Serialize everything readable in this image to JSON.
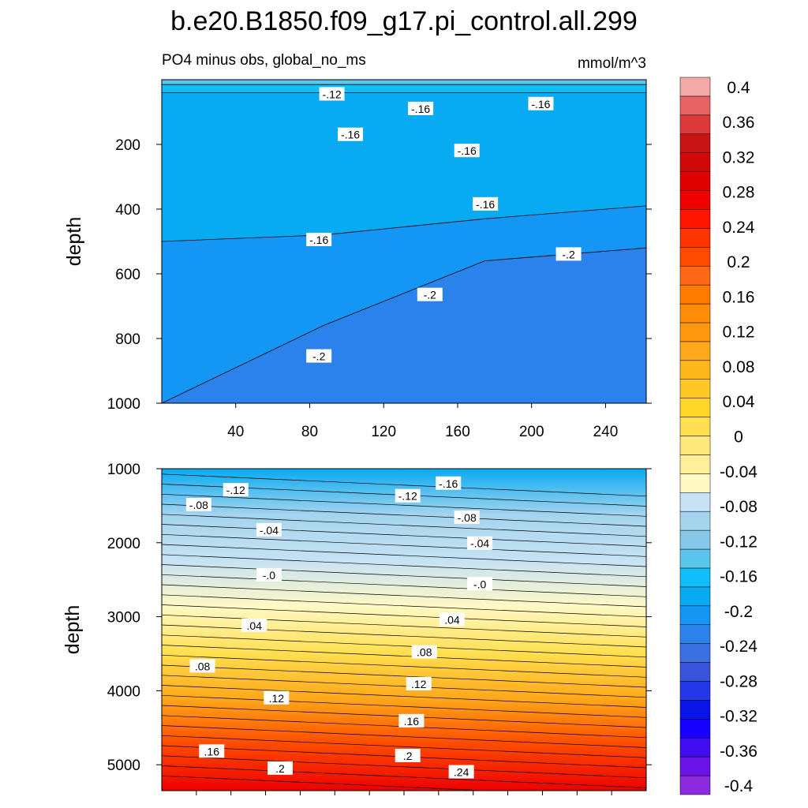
{
  "chart_data": {
    "type": "contour",
    "title": "b.e20.B1850.f09_g17.pi_control.all.299",
    "subtitle_left": "PO4 minus obs, global_no_ms",
    "subtitle_right": "mmol/m^3",
    "colorbar": {
      "levels": [
        -0.4,
        -0.36,
        -0.32,
        -0.28,
        -0.24,
        -0.2,
        -0.16,
        -0.12,
        -0.08,
        -0.04,
        0,
        0.04,
        0.08,
        0.12,
        0.16,
        0.2,
        0.24,
        0.28,
        0.32,
        0.36,
        0.4
      ],
      "labels": [
        "-0.4",
        "-0.36",
        "-0.32",
        "-0.28",
        "-0.24",
        "-0.2",
        "-0.16",
        "-0.12",
        "-0.08",
        "-0.04",
        "0",
        "0.04",
        "0.08",
        "0.12",
        "0.16",
        "0.2",
        "0.24",
        "0.28",
        "0.32",
        "0.36",
        "0.4"
      ],
      "colors": [
        "#8c2ae0",
        "#6a14e8",
        "#3f0df0",
        "#1600ff",
        "#0b14e6",
        "#2438e8",
        "#3a55dc",
        "#3a70e2",
        "#2a82ea",
        "#1496f4",
        "#08aaf2",
        "#10bff8",
        "#5ac6ee",
        "#86c8ea",
        "#a4d4ee",
        "#c6e2f4",
        "#fff9c4",
        "#ffef9a",
        "#ffe87a",
        "#ffe050",
        "#ffd62a",
        "#ffc824",
        "#ffb81c",
        "#ffa81a",
        "#ff9810",
        "#ff8c08",
        "#ff7a00",
        "#ff6814",
        "#ff4a00",
        "#ff3400",
        "#ff1400",
        "#f00000",
        "#e00000",
        "#d00808",
        "#c81414",
        "#dc3a3a",
        "#e86464",
        "#f4a8a8"
      ]
    },
    "panels": [
      {
        "name": "upper",
        "xlim": [
          0,
          262
        ],
        "ylim": [
          1000,
          0
        ],
        "x_ticks": [
          40,
          80,
          120,
          160,
          200,
          240
        ],
        "x_tick_labels": [
          "40",
          "80",
          "120",
          "160",
          "200",
          "240"
        ],
        "y_ticks": [
          200,
          400,
          600,
          800,
          1000
        ],
        "y_tick_labels": [
          "200",
          "400",
          "600",
          "800",
          "1000"
        ],
        "ylabel": "depth",
        "bands": [
          {
            "value_range": [
              -0.12,
              -0.08
            ],
            "color": "#5ac6ee",
            "from_depth": [
              0,
              0,
              0,
              0
            ],
            "to_depth": [
              15,
              15,
              15,
              15
            ]
          },
          {
            "value_range": [
              -0.16,
              -0.12
            ],
            "color": "#10bff8",
            "from_depth": [
              15,
              15,
              15,
              15
            ],
            "to_depth": [
              40,
              40,
              40,
              40
            ]
          },
          {
            "value_range": [
              -0.16,
              -0.12
            ],
            "color": "#08aaf2",
            "from_depth": [
              40,
              40,
              40,
              40
            ],
            "to_depth": [
              500,
              480,
              430,
              390
            ]
          },
          {
            "value_range": [
              -0.2,
              -0.16
            ],
            "color": "#1496f4",
            "from_depth": [
              500,
              480,
              430,
              390
            ],
            "to_depth": [
              1000,
              760,
              560,
              520
            ]
          },
          {
            "value_range": [
              -0.24,
              -0.2
            ],
            "color": "#2a82ea",
            "from_depth": [
              1000,
              760,
              560,
              520
            ],
            "to_depth": [
              1000,
              1000,
              1000,
              1000
            ]
          }
        ],
        "contour_labels": [
          {
            "text": "-.12",
            "x": 92,
            "y": 45
          },
          {
            "text": "-.16",
            "x": 140,
            "y": 90
          },
          {
            "text": "-.16",
            "x": 205,
            "y": 75
          },
          {
            "text": "-.16",
            "x": 102,
            "y": 170
          },
          {
            "text": "-.16",
            "x": 165,
            "y": 220
          },
          {
            "text": "-.16",
            "x": 175,
            "y": 385
          },
          {
            "text": "-.16",
            "x": 85,
            "y": 495
          },
          {
            "text": "-.2",
            "x": 220,
            "y": 540
          },
          {
            "text": "-.2",
            "x": 145,
            "y": 665
          },
          {
            "text": "-.2",
            "x": 85,
            "y": 855
          }
        ]
      },
      {
        "name": "lower",
        "xlim": [
          0,
          262
        ],
        "ylim": [
          5350,
          1000
        ],
        "y_ticks": [
          1000,
          2000,
          3000,
          4000,
          5000
        ],
        "y_tick_labels": [
          "1000",
          "2000",
          "3000",
          "4000",
          "5000"
        ],
        "ylabel": "depth",
        "gradient_colors": [
          "#08aaf2",
          "#a4d4ee",
          "#c6e2f4",
          "#fff9c4",
          "#ffe050",
          "#ffa81a",
          "#ff4a00",
          "#ee0000"
        ],
        "contour_labels": [
          {
            "text": "-.12",
            "x": 40,
            "y": 1290
          },
          {
            "text": "-.08",
            "x": 20,
            "y": 1490
          },
          {
            "text": "-.04",
            "x": 58,
            "y": 1830
          },
          {
            "text": "-.0",
            "x": 58,
            "y": 2440
          },
          {
            "text": ".04",
            "x": 50,
            "y": 3120
          },
          {
            "text": ".08",
            "x": 22,
            "y": 3670
          },
          {
            "text": ".12",
            "x": 62,
            "y": 4100
          },
          {
            "text": ".16",
            "x": 27,
            "y": 4820
          },
          {
            "text": ".2",
            "x": 64,
            "y": 5050
          },
          {
            "text": "-.16",
            "x": 155,
            "y": 1200
          },
          {
            "text": "-.12",
            "x": 133,
            "y": 1370
          },
          {
            "text": "-.08",
            "x": 165,
            "y": 1660
          },
          {
            "text": "-.04",
            "x": 172,
            "y": 2010
          },
          {
            "text": "-.0",
            "x": 172,
            "y": 2560
          },
          {
            "text": ".04",
            "x": 157,
            "y": 3040
          },
          {
            "text": ".08",
            "x": 142,
            "y": 3480
          },
          {
            "text": ".12",
            "x": 139,
            "y": 3910
          },
          {
            "text": ".16",
            "x": 135,
            "y": 4410
          },
          {
            "text": ".2",
            "x": 133,
            "y": 4880
          },
          {
            "text": ".24",
            "x": 162,
            "y": 5100
          }
        ]
      }
    ]
  }
}
